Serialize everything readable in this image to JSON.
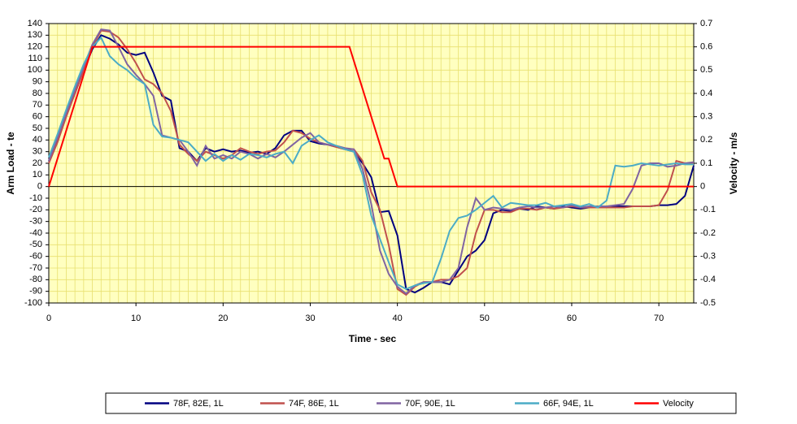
{
  "chart_data": {
    "type": "line",
    "x_label": "Time - sec",
    "y_label": "Arm Load - te",
    "y2_label": "Velocity - m/s",
    "x": [
      0,
      1,
      2,
      3,
      4,
      5,
      6,
      7,
      8,
      9,
      10,
      11,
      12,
      13,
      14,
      15,
      16,
      17,
      18,
      19,
      20,
      21,
      22,
      23,
      24,
      25,
      26,
      27,
      28,
      29,
      30,
      31,
      32,
      33,
      34,
      35,
      36,
      37,
      38,
      39,
      40,
      41,
      42,
      43,
      44,
      45,
      46,
      47,
      48,
      49,
      50,
      51,
      52,
      53,
      54,
      55,
      56,
      57,
      58,
      59,
      60,
      61,
      62,
      63,
      64,
      65,
      66,
      67,
      68,
      69,
      70,
      71,
      72,
      73,
      74
    ],
    "series": [
      {
        "name": "78F, 82E, 1L",
        "color": "#000080",
        "values": [
          22,
          40,
          62,
          80,
          100,
          118,
          130,
          127,
          122,
          115,
          113,
          115,
          98,
          78,
          74,
          33,
          30,
          22,
          33,
          30,
          32,
          30,
          31,
          29,
          30,
          28,
          33,
          44,
          48,
          48,
          39,
          37,
          36,
          34,
          32,
          30,
          20,
          8,
          -22,
          -21,
          -42,
          -88,
          -91,
          -87,
          -82,
          -82,
          -84,
          -72,
          -60,
          -55,
          -46,
          -23,
          -20,
          -21,
          -19,
          -20,
          -17,
          -18,
          -19,
          -17,
          -18,
          -19,
          -18,
          -18,
          -18,
          -17,
          -17,
          -17,
          -17,
          -17,
          -16,
          -16,
          -15,
          -8,
          18
        ]
      },
      {
        "name": "74F, 86E, 1L",
        "color": "#c0504d",
        "values": [
          20,
          38,
          60,
          80,
          100,
          120,
          134,
          133,
          128,
          118,
          106,
          92,
          88,
          80,
          65,
          36,
          28,
          22,
          30,
          27,
          24,
          27,
          33,
          30,
          28,
          30,
          31,
          38,
          48,
          46,
          41,
          38,
          36,
          34,
          32,
          32,
          22,
          -5,
          -20,
          -50,
          -88,
          -93,
          -86,
          -82,
          -82,
          -80,
          -80,
          -77,
          -70,
          -40,
          -20,
          -20,
          -22,
          -22,
          -19,
          -19,
          -20,
          -18,
          -19,
          -18,
          -17,
          -18,
          -18,
          -18,
          -18,
          -18,
          -18,
          -17,
          -17,
          -17,
          -16,
          -3,
          22,
          20,
          20
        ]
      },
      {
        "name": "70F, 90E, 1L",
        "color": "#8064a2",
        "values": [
          22,
          42,
          63,
          83,
          103,
          122,
          135,
          134,
          120,
          105,
          96,
          88,
          78,
          44,
          42,
          40,
          30,
          18,
          35,
          24,
          27,
          24,
          30,
          28,
          24,
          28,
          25,
          30,
          36,
          42,
          46,
          38,
          36,
          35,
          33,
          32,
          15,
          -15,
          -55,
          -75,
          -86,
          -92,
          -85,
          -82,
          -82,
          -82,
          -80,
          -70,
          -35,
          -10,
          -20,
          -18,
          -19,
          -20,
          -18,
          -17,
          -18,
          -18,
          -17,
          -18,
          -16,
          -18,
          -17,
          -17,
          -17,
          -16,
          -15,
          -2,
          18,
          20,
          20,
          17,
          18,
          20,
          21
        ]
      },
      {
        "name": "66F, 94E, 1L",
        "color": "#4bacc6",
        "values": [
          25,
          45,
          66,
          86,
          105,
          120,
          128,
          112,
          105,
          100,
          93,
          88,
          53,
          43,
          42,
          40,
          38,
          30,
          22,
          28,
          22,
          27,
          23,
          28,
          27,
          25,
          28,
          30,
          20,
          35,
          40,
          44,
          38,
          35,
          32,
          30,
          10,
          -25,
          -45,
          -65,
          -84,
          -88,
          -85,
          -83,
          -82,
          -62,
          -38,
          -27,
          -25,
          -20,
          -14,
          -8,
          -18,
          -14,
          -15,
          -16,
          -16,
          -14,
          -17,
          -16,
          -15,
          -17,
          -15,
          -18,
          -12,
          18,
          17,
          18,
          20,
          19,
          18,
          19,
          20,
          19,
          19
        ]
      },
      {
        "name": "Velocity",
        "color": "#ff0000",
        "axis": "y2",
        "x": [
          0,
          5,
          34.5,
          38.5,
          39,
          40,
          74
        ],
        "values": [
          0,
          0.6,
          0.6,
          0.12,
          0.12,
          0,
          0
        ]
      }
    ],
    "xlim": [
      0,
      74
    ],
    "xticks": [
      0,
      10,
      20,
      30,
      40,
      50,
      60,
      70
    ],
    "ylim": [
      -100,
      140
    ],
    "yticks": [
      -100,
      -90,
      -80,
      -70,
      -60,
      -50,
      -40,
      -30,
      -20,
      -10,
      0,
      10,
      20,
      30,
      40,
      50,
      60,
      70,
      80,
      90,
      100,
      110,
      120,
      130,
      140
    ],
    "y2lim": [
      -0.5,
      0.7
    ],
    "y2ticks": [
      -0.5,
      -0.4,
      -0.3,
      -0.2,
      -0.1,
      0,
      0.1,
      0.2,
      0.3,
      0.4,
      0.5,
      0.6,
      0.7
    ],
    "grid": true,
    "minor_grid": true,
    "plot_background": "#ffffc0",
    "grid_color": "#e8e070",
    "legend": "bottom"
  }
}
